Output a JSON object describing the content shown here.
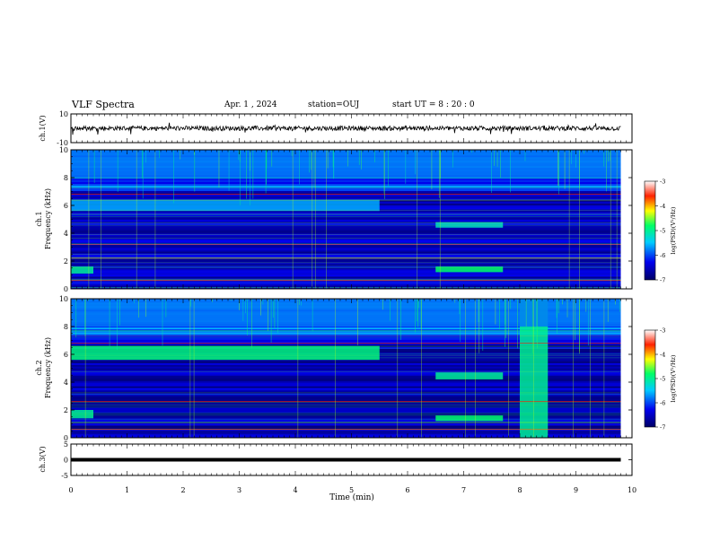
{
  "header": {
    "title": "VLF Spectra",
    "date": "Apr. 1 , 2024",
    "station": "station=OUJ",
    "start": "start UT = 8 : 20 : 0"
  },
  "chart_data": [
    {
      "type": "line",
      "panel": "ch1-waveform",
      "ylabel": "ch.1(V)",
      "yticks": [
        "10",
        "-10"
      ],
      "ylim": [
        -10,
        10
      ],
      "xlim": [
        0,
        10
      ],
      "trace_extent_min": [
        0,
        9.8
      ],
      "color": "#000000"
    },
    {
      "type": "heatmap",
      "panel": "ch1-spectrogram",
      "ylabel_top": "ch.1",
      "ylabel": "Frequency (kHz)",
      "yticks": [
        "0",
        "2",
        "4",
        "6",
        "8",
        "10"
      ],
      "ylim": [
        0,
        10
      ],
      "xlim": [
        0,
        10
      ],
      "data_extent_min": [
        0,
        9.8
      ],
      "colorbar": {
        "label": "log(PSD)(V²/Hz)",
        "ticks": [
          "-3",
          "-4",
          "-5",
          "-6",
          "-7"
        ],
        "range": [
          -7,
          -3
        ]
      },
      "features": [
        {
          "kind": "band",
          "t": [
            0,
            5.5
          ],
          "f": [
            5.6,
            6.4
          ],
          "level": -5.6
        },
        {
          "kind": "band",
          "t": [
            6.5,
            7.7
          ],
          "f": [
            1.2,
            1.6
          ],
          "level": -4.8
        },
        {
          "kind": "band",
          "t": [
            6.5,
            7.7
          ],
          "f": [
            4.4,
            4.8
          ],
          "level": -5.2
        },
        {
          "kind": "band",
          "t": [
            0,
            0.4
          ],
          "f": [
            1.1,
            1.6
          ],
          "level": -5.0
        },
        {
          "kind": "band",
          "t": [
            0,
            9.8
          ],
          "f": [
            8.0,
            10.0
          ],
          "level": -5.8
        },
        {
          "kind": "line",
          "f": 6.8,
          "level": -3.6
        },
        {
          "kind": "line",
          "f": 3.2,
          "level": -3.4
        },
        {
          "kind": "line",
          "f": 2.2,
          "level": -4.2
        },
        {
          "kind": "line",
          "f": 0.6,
          "level": -3.8
        }
      ]
    },
    {
      "type": "heatmap",
      "panel": "ch2-spectrogram",
      "ylabel_top": "ch.2",
      "ylabel": "Frequency (kHz)",
      "yticks": [
        "0",
        "2",
        "4",
        "6",
        "8",
        "10"
      ],
      "ylim": [
        0,
        10
      ],
      "xlim": [
        0,
        10
      ],
      "data_extent_min": [
        0,
        9.8
      ],
      "colorbar": {
        "label": "log(PSD)(V²/Hz)",
        "ticks": [
          "-3",
          "-4",
          "-5",
          "-6",
          "-7"
        ],
        "range": [
          -7,
          -3
        ]
      },
      "features": [
        {
          "kind": "band",
          "t": [
            0,
            5.5
          ],
          "f": [
            5.6,
            6.6
          ],
          "level": -4.9
        },
        {
          "kind": "band",
          "t": [
            6.5,
            7.7
          ],
          "f": [
            1.2,
            1.6
          ],
          "level": -4.8
        },
        {
          "kind": "band",
          "t": [
            6.5,
            7.7
          ],
          "f": [
            4.2,
            4.7
          ],
          "level": -5.0
        },
        {
          "kind": "band",
          "t": [
            0,
            0.4
          ],
          "f": [
            1.4,
            2.0
          ],
          "level": -5.0
        },
        {
          "kind": "band",
          "t": [
            8.0,
            8.5
          ],
          "f": [
            0,
            10
          ],
          "level": -5.0
        },
        {
          "kind": "band",
          "t": [
            0,
            9.8
          ],
          "f": [
            8.0,
            10.0
          ],
          "level": -5.8
        },
        {
          "kind": "line",
          "f": 6.8,
          "level": -3.6
        },
        {
          "kind": "line",
          "f": 2.6,
          "level": -3.6
        },
        {
          "kind": "line",
          "f": 0.6,
          "level": -3.8
        }
      ]
    },
    {
      "type": "line",
      "panel": "ch3-waveform",
      "ylabel": "ch.3(V)",
      "yticks": [
        "5",
        "0",
        "-5"
      ],
      "ylim": [
        -5,
        5
      ],
      "xlim": [
        0,
        10
      ],
      "xlabel": "Time (min)",
      "xticks": [
        "0",
        "1",
        "2",
        "3",
        "4",
        "5",
        "6",
        "7",
        "8",
        "9",
        "10"
      ],
      "trace_extent_min": [
        0,
        9.8
      ],
      "level_V": 0,
      "color": "#000000"
    }
  ]
}
